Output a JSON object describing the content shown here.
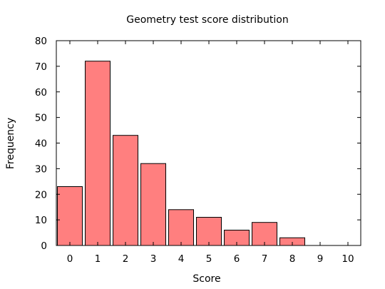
{
  "chart_data": {
    "type": "bar",
    "title": "Geometry test score distribution",
    "xlabel": "Score",
    "ylabel": "Frequency",
    "categories": [
      "0",
      "1",
      "2",
      "3",
      "4",
      "5",
      "6",
      "7",
      "8",
      "9",
      "10"
    ],
    "values": [
      23,
      72,
      43,
      32,
      14,
      11,
      6,
      9,
      3,
      0,
      0
    ],
    "ylim": [
      0,
      80
    ],
    "yticks": [
      "0",
      "10",
      "20",
      "30",
      "40",
      "50",
      "60",
      "70",
      "80"
    ],
    "grid": false,
    "legend": "none",
    "colors": {
      "bar_fill": "#ff7f7f",
      "bar_stroke": "#000000",
      "axis": "#000000"
    }
  }
}
